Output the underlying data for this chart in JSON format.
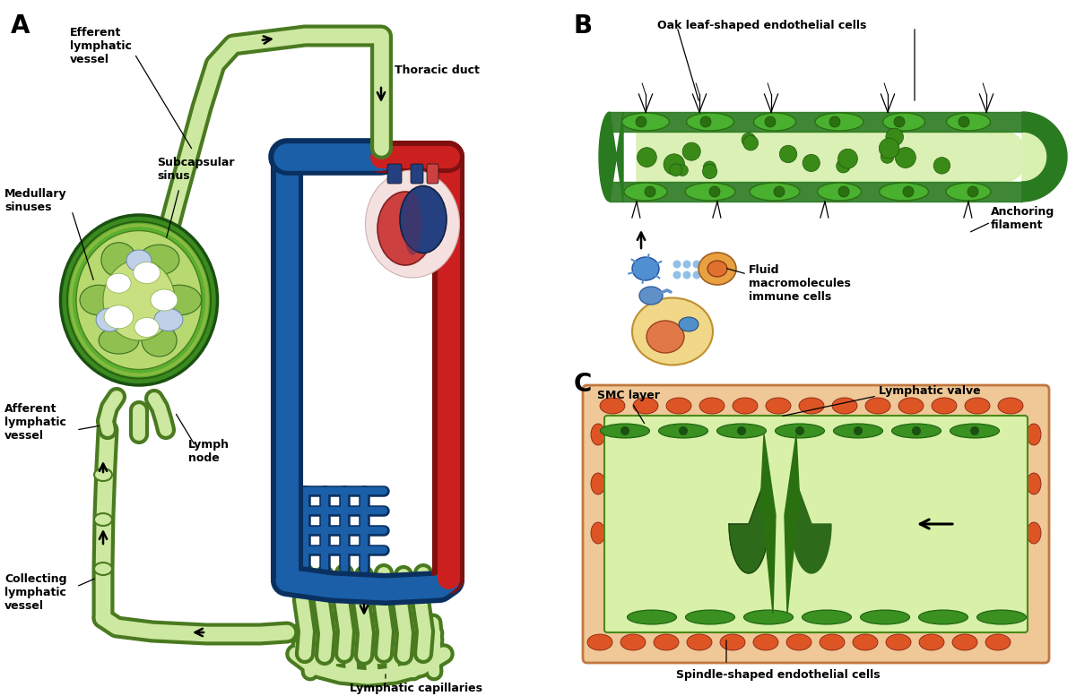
{
  "background_color": "#ffffff",
  "panel_labels": [
    "A",
    "B",
    "C"
  ],
  "panel_label_fontsize": 20,
  "colors": {
    "lv_fill": "#cde8a0",
    "lv_stroke": "#4a7a20",
    "lv_stroke_dark": "#2a5a10",
    "blue_fill": "#1a5fa8",
    "blue_stroke": "#0a3060",
    "red_fill": "#cc2020",
    "red_stroke": "#801010",
    "node_outer": "#3a8a20",
    "node_mid": "#6ab040",
    "node_inner": "#b8d880",
    "node_sinus": "#90c060",
    "follicle": "#c8d8f0",
    "heart_bg": "#f0d0d0",
    "heart_red": "#cc3030",
    "heart_blue": "#204080",
    "tube_wall": "#2a7a20",
    "tube_interior": "#d8f0b0",
    "tube_cell": "#3a9020",
    "smc_bg": "#f0c898",
    "smc_cell": "#e06030",
    "valve_green": "#2d6a1a",
    "spindle_green": "#2a8020",
    "cell_blue": "#4080c8",
    "cell_orange": "#e89040",
    "cell_red": "#cc4040"
  }
}
